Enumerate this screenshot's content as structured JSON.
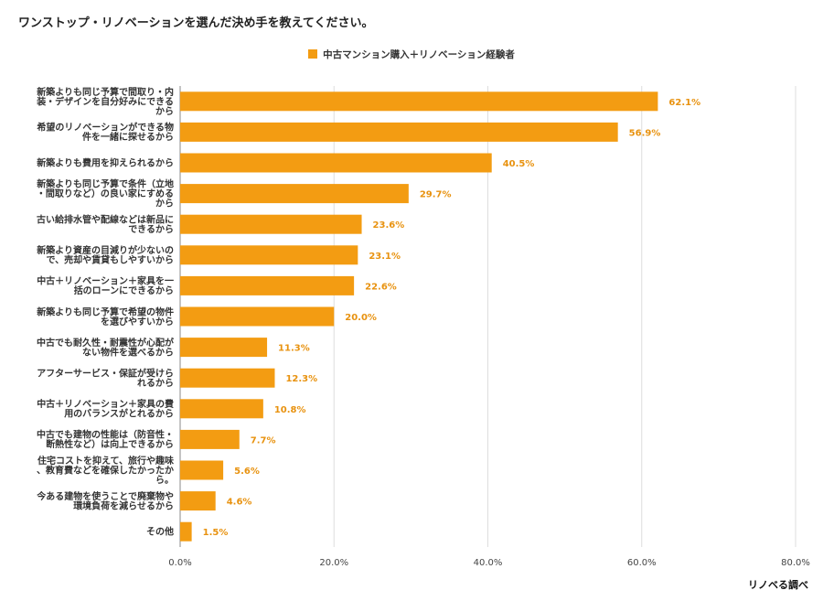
{
  "title": "ワンストップ・リノベーションを選んだ決め手を教えてください。",
  "source": "リノベる調べ",
  "colors": {
    "bar": "#F39C12",
    "label": "#E8920F",
    "grid": "#DDDDDD",
    "axis": "#888888"
  },
  "chart_data": {
    "type": "bar",
    "orientation": "horizontal",
    "title": "ワンストップ・リノベーションを選んだ決め手を教えてください。",
    "legend_position": "top",
    "grid": true,
    "xlim": [
      0,
      80
    ],
    "xticks": [
      "0.0%",
      "20.0%",
      "40.0%",
      "60.0%",
      "80.0%"
    ],
    "series": [
      {
        "name": "中古マンション購入＋リノベーション経験者",
        "values": [
          62.1,
          56.9,
          40.5,
          29.7,
          23.6,
          23.1,
          22.6,
          20.0,
          11.3,
          12.3,
          10.8,
          7.7,
          5.6,
          4.6,
          1.5
        ],
        "labels": [
          "62.1%",
          "56.9%",
          "40.5%",
          "29.7%",
          "23.6%",
          "23.1%",
          "22.6%",
          "20.0%",
          "11.3%",
          "12.3%",
          "10.8%",
          "7.7%",
          "5.6%",
          "4.6%",
          "1.5%"
        ]
      }
    ],
    "categories": [
      [
        "新築よりも同じ予算で間取り・内",
        "装・デザインを自分好みにできる",
        "から"
      ],
      [
        "希望のリノベーションができる物",
        "件を一緒に探せるから"
      ],
      [
        "新築よりも費用を抑えられるから"
      ],
      [
        "新築よりも同じ予算で条件（立地",
        "・間取りなど）の良い家にすめる",
        "から"
      ],
      [
        "古い給排水管や配線などは新品に",
        "できるから"
      ],
      [
        "新築より資産の目減りが少ないの",
        "で、売却や賃貸もしやすいから"
      ],
      [
        "中古＋リノベーション＋家具を一",
        "括のローンにできるから"
      ],
      [
        "新築よりも同じ予算で希望の物件",
        "を選びやすいから"
      ],
      [
        "中古でも耐久性・耐震性が心配が",
        "ない物件を選べるから"
      ],
      [
        "アフターサービス・保証が受けら",
        "れるから"
      ],
      [
        "中古＋リノベーション＋家具の費",
        "用のバランスがとれるから"
      ],
      [
        "中古でも建物の性能は（防音性・",
        "断熱性など）は向上できるから"
      ],
      [
        "住宅コストを抑えて、旅行や趣味",
        "、教育費などを確保したかったか",
        "ら。"
      ],
      [
        "今ある建物を使うことで廃棄物や",
        "環境負荷を減らせるから"
      ],
      [
        "その他"
      ]
    ]
  }
}
